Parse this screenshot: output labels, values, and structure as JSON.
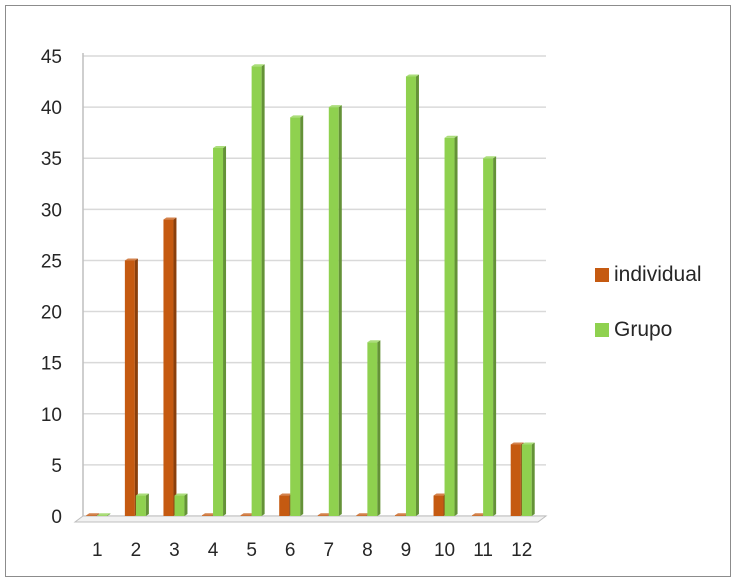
{
  "chart_data": {
    "type": "bar",
    "categories": [
      "1",
      "2",
      "3",
      "4",
      "5",
      "6",
      "7",
      "8",
      "9",
      "10",
      "11",
      "12"
    ],
    "series": [
      {
        "name": "individual",
        "color": "#c55a11",
        "values": [
          0,
          25,
          29,
          0,
          0,
          2,
          0,
          0,
          0,
          2,
          0,
          7
        ]
      },
      {
        "name": "Grupo",
        "color": "#8fd14f",
        "values": [
          0,
          2,
          2,
          36,
          44,
          39,
          40,
          17,
          43,
          37,
          35,
          7
        ]
      }
    ],
    "y_ticks": [
      "0",
      "5",
      "10",
      "15",
      "20",
      "25",
      "30",
      "35",
      "40",
      "45"
    ],
    "ylim": [
      0,
      45
    ],
    "grid": true,
    "legend_position": "right",
    "title": "",
    "xlabel": "",
    "ylabel": ""
  }
}
